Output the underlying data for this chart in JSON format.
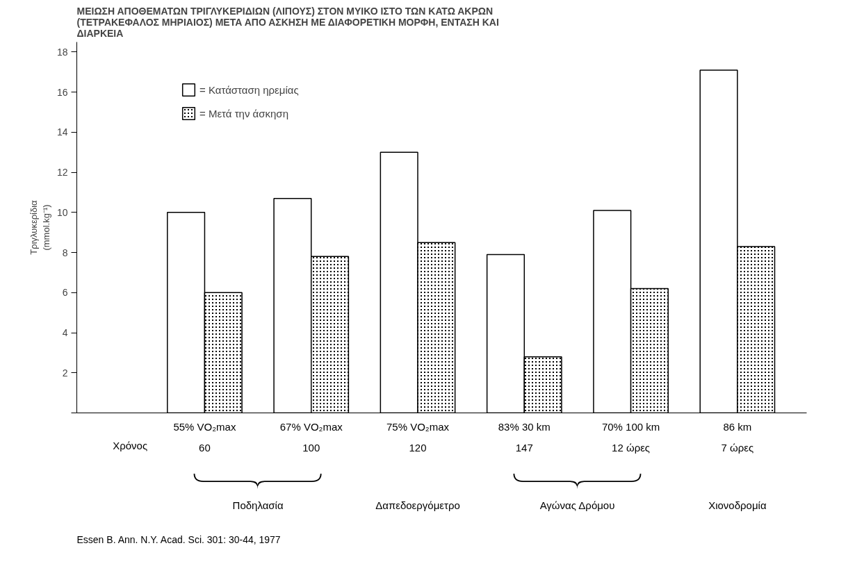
{
  "chart_data": {
    "type": "bar",
    "title": "ΜΕΙΩΣΗ ΑΠΟΘΕΜΑΤΩΝ ΤΡΙΓΛΥΚΕΡΙΔΙΩΝ (ΛΙΠΟΥΣ) ΣΤΟΝ ΜΥΙΚΟ ΙΣΤΟ ΤΩΝ ΚΑΤΩ ΑΚΡΩΝ\n(ΤΕΤΡΑΚΕΦΑΛΟΣ ΜΗΡΙΑΙΟΣ) ΜΕΤΑ ΑΠΟ ΑΣΚΗΣΗ ΜΕ ΔΙΑΦΟΡΕΤΙΚΗ ΜΟΡΦΗ, ΕΝΤΑΣΗ ΚΑΙ\nΔΙΑΡΚΕΙΑ",
    "ylabel": "Τριγλυκερίδια\n(mmol.kg⁻¹)",
    "categories": [
      "55% VO₂max\n60",
      "67% VO₂max\n100",
      "75% VO₂max\n120",
      "83% 30 km\n147",
      "70% 100 km\n12 ώρες",
      "86 km\n7 ώρες"
    ],
    "series": [
      {
        "name": "= Κατάσταση ηρεμίας",
        "color": "#ffffff",
        "values": [
          10.0,
          10.7,
          13.0,
          7.9,
          10.1,
          17.1
        ]
      },
      {
        "name": "= Μετά την άσκηση",
        "color": "#000000",
        "values": [
          6.0,
          7.8,
          8.5,
          2.8,
          6.2,
          8.3
        ]
      }
    ],
    "ylim": [
      0,
      18.5
    ],
    "yticks": [
      {
        "value": 0,
        "label": null
      },
      2,
      4,
      6,
      8,
      10,
      12,
      14,
      16,
      18
    ],
    "grid": false,
    "legend": "top left",
    "annotations": [
      "Χρόνος",
      "Ποδηλασία",
      "Δαπεδοεργόμετρο",
      "Αγώνας Δρόμου",
      "Χιονοδρομία",
      "Essen B. Ann. N.Y. Acad. Sci. 301: 30-44, 1977"
    ]
  }
}
